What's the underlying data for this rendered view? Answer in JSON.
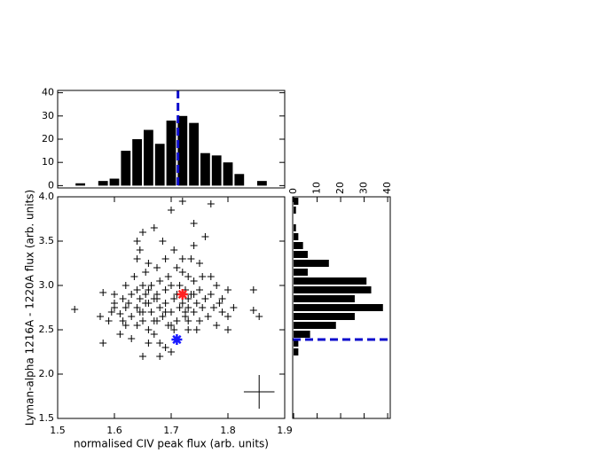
{
  "chart_data": [
    {
      "type": "scatter",
      "xlabel": "normalised CIV peak flux (arb. units)",
      "ylabel": "Lyman-alpha 1216A - 1220A flux (arb. units)",
      "xlim": [
        1.5,
        1.9
      ],
      "ylim": [
        1.5,
        4.0
      ],
      "xticks": [
        1.5,
        1.6,
        1.7,
        1.8,
        1.9
      ],
      "yticks": [
        1.5,
        {
          "value": 2,
          "label": "2.0"
        },
        2.5,
        {
          "value": 3,
          "label": "3.0"
        },
        3.5,
        {
          "value": 4,
          "label": "4.0"
        }
      ],
      "color": "#000000",
      "x": [
        1.53,
        1.575,
        1.58,
        1.58,
        1.59,
        1.6,
        1.6,
        1.61,
        1.61,
        1.615,
        1.62,
        1.62,
        1.62,
        1.625,
        1.63,
        1.63,
        1.635,
        1.63,
        1.64,
        1.64,
        1.64,
        1.64,
        1.645,
        1.645,
        1.65,
        1.65,
        1.65,
        1.65,
        1.655,
        1.655,
        1.66,
        1.66,
        1.66,
        1.665,
        1.665,
        1.67,
        1.67,
        1.67,
        1.675,
        1.675,
        1.675,
        1.68,
        1.68,
        1.68,
        1.685,
        1.685,
        1.69,
        1.69,
        1.69,
        1.695,
        1.695,
        1.7,
        1.7,
        1.7,
        1.705,
        1.705,
        1.71,
        1.71,
        1.715,
        1.715,
        1.72,
        1.72,
        1.72,
        1.725,
        1.725,
        1.73,
        1.73,
        1.73,
        1.735,
        1.74,
        1.74,
        1.74,
        1.745,
        1.75,
        1.75,
        1.75,
        1.755,
        1.76,
        1.76,
        1.765,
        1.77,
        1.77,
        1.775,
        1.78,
        1.78,
        1.785,
        1.79,
        1.8,
        1.8,
        1.81,
        1.845,
        1.845,
        1.855,
        1.69,
        1.7,
        1.68,
        1.72,
        1.66,
        1.6,
        1.645,
        1.66,
        1.675,
        1.69,
        1.71,
        1.73,
        1.74,
        1.655,
        1.67,
        1.615,
        1.595,
        1.705,
        1.7,
        1.73,
        1.745,
        1.725,
        1.735,
        1.65,
        1.64,
        1.74,
        1.755,
        1.77,
        1.79,
        1.8
      ],
      "y": [
        2.73,
        2.65,
        2.35,
        2.92,
        2.6,
        2.9,
        2.75,
        2.45,
        2.68,
        2.85,
        3.0,
        2.55,
        2.75,
        2.8,
        2.9,
        2.65,
        3.1,
        2.4,
        2.75,
        2.95,
        3.3,
        2.55,
        2.85,
        3.4,
        2.7,
        3.0,
        2.2,
        2.6,
        3.15,
        2.8,
        2.95,
        2.5,
        3.25,
        2.7,
        3.0,
        2.85,
        3.65,
        2.45,
        2.6,
        3.2,
        2.9,
        2.75,
        3.05,
        2.35,
        3.5,
        2.65,
        2.95,
        2.8,
        3.3,
        2.55,
        3.1,
        2.7,
        3.0,
        3.85,
        2.85,
        3.4,
        2.6,
        3.2,
        2.75,
        3.0,
        2.8,
        3.3,
        3.95,
        2.65,
        2.95,
        3.1,
        2.75,
        2.5,
        2.9,
        2.7,
        3.05,
        3.45,
        2.8,
        2.6,
        2.95,
        3.25,
        2.75,
        2.85,
        3.55,
        2.65,
        2.9,
        3.92,
        2.75,
        3.0,
        2.55,
        2.8,
        2.7,
        2.65,
        2.5,
        2.75,
        2.95,
        2.72,
        2.65,
        2.3,
        2.25,
        2.2,
        3.15,
        2.35,
        2.8,
        2.7,
        2.8,
        2.85,
        2.7,
        2.9,
        2.85,
        2.9,
        2.9,
        2.6,
        2.6,
        2.7,
        2.5,
        2.55,
        2.6,
        2.5,
        2.7,
        3.3,
        3.6,
        3.5,
        3.7,
        3.1,
        3.1,
        2.85,
        2.95
      ],
      "highlights": [
        {
          "x": 1.72,
          "y": 2.9,
          "color": "#ff2020"
        },
        {
          "x": 1.71,
          "y": 2.39,
          "color": "#1a1aff"
        }
      ],
      "error_bar": {
        "x": 1.855,
        "y": 1.8,
        "xerr": 0.027,
        "yerr": 0.19
      }
    },
    {
      "type": "histogram",
      "orientation": "vertical",
      "bins": [
        1.53,
        1.55,
        1.57,
        1.59,
        1.61,
        1.63,
        1.65,
        1.67,
        1.69,
        1.71,
        1.73,
        1.75,
        1.77,
        1.79,
        1.81,
        1.83,
        1.85,
        1.87
      ],
      "counts": [
        1,
        0,
        2,
        3,
        15,
        20,
        24,
        18,
        28,
        30,
        27,
        14,
        13,
        10,
        5,
        0,
        2
      ],
      "color": "#000000",
      "xlim": [
        1.5,
        1.9
      ],
      "ylim": [
        -1,
        41
      ],
      "yticks": [
        0,
        10,
        20,
        30,
        40
      ],
      "vline": 1.712,
      "line_color": "#0a0acc"
    },
    {
      "type": "histogram",
      "orientation": "horizontal",
      "bins": [
        2.2,
        2.3,
        2.4,
        2.5,
        2.6,
        2.7,
        2.8,
        2.9,
        3.0,
        3.1,
        3.2,
        3.3,
        3.4,
        3.5,
        3.6,
        3.7,
        3.8,
        3.9,
        4.0
      ],
      "counts": [
        2,
        2,
        7,
        18,
        26,
        38,
        26,
        33,
        31,
        6,
        15,
        6,
        4,
        2,
        1,
        0,
        1,
        2
      ],
      "color": "#000000",
      "ylim": [
        1.5,
        4.0
      ],
      "xlim": [
        -0.4,
        41.1
      ],
      "xticks": [
        0,
        10,
        20,
        30,
        40
      ],
      "hline": 2.39,
      "line_color": "#0a0acc"
    }
  ]
}
